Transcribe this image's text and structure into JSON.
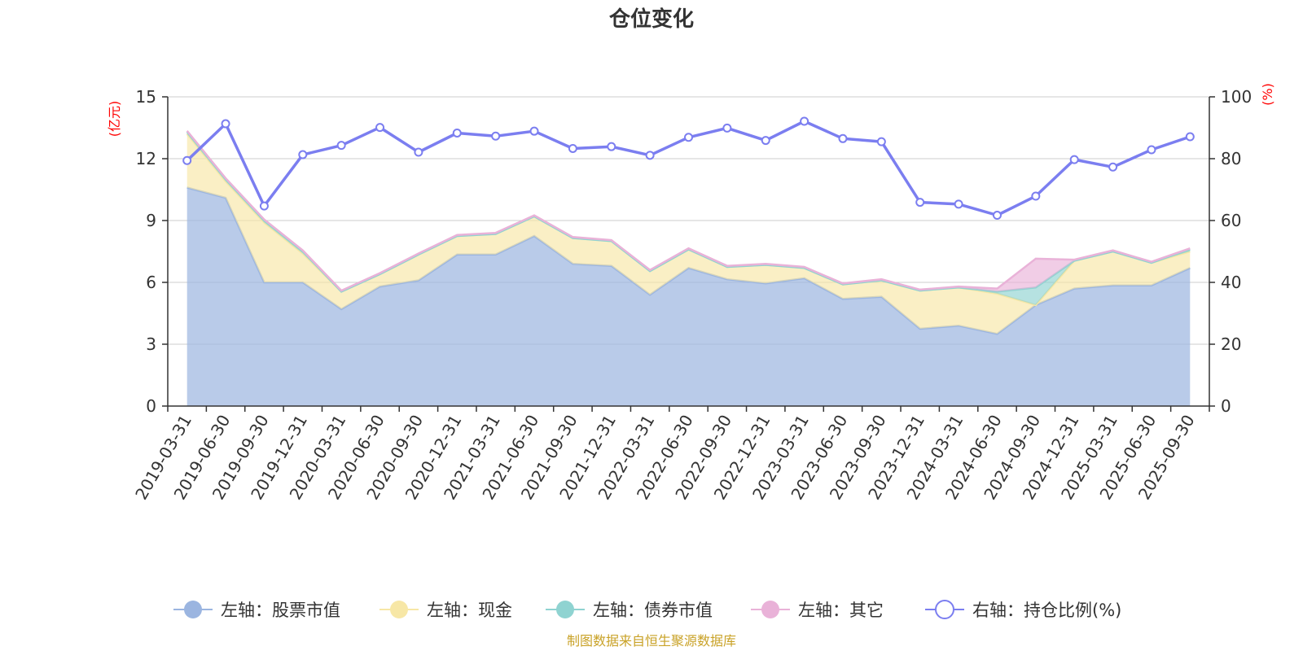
{
  "colors": {
    "stock": "#9bb5e0",
    "cash": "#f7e7a6",
    "bond": "#8fd3d1",
    "other": "#e9b2d8",
    "ratio": "#7b7ef0",
    "grid": "#cccccc",
    "axis": "#333333",
    "unit": "#ff0000",
    "source": "#c9a227"
  },
  "chart_data": {
    "type": "area",
    "title": "仓位变化",
    "left_axis": {
      "unit": "(亿元)",
      "ylim": [
        0,
        15
      ],
      "ticks": [
        "0",
        "3",
        "6",
        "9",
        "12",
        "15"
      ]
    },
    "right_axis": {
      "unit": "(%)",
      "ylim": [
        0,
        100
      ],
      "ticks": [
        "0",
        "20",
        "40",
        "60",
        "80",
        "100"
      ]
    },
    "categories": [
      "2019-03-31",
      "2019-06-30",
      "2019-09-30",
      "2019-12-31",
      "2020-03-31",
      "2020-06-30",
      "2020-09-30",
      "2020-12-31",
      "2021-03-31",
      "2021-06-30",
      "2021-09-30",
      "2021-12-31",
      "2022-03-31",
      "2022-06-30",
      "2022-09-30",
      "2022-12-31",
      "2023-03-31",
      "2023-06-30",
      "2023-09-30",
      "2023-12-31",
      "2024-03-31",
      "2024-06-30",
      "2024-09-30",
      "2024-12-31",
      "2025-03-31",
      "2025-06-30",
      "2025-09-30"
    ],
    "series": [
      {
        "name": "左轴：股票市值",
        "axis": "left",
        "type": "stacked-area",
        "values": [
          10.6,
          10.1,
          6.0,
          6.0,
          4.7,
          5.8,
          6.1,
          7.35,
          7.35,
          8.25,
          6.9,
          6.8,
          5.4,
          6.7,
          6.15,
          5.95,
          6.2,
          5.2,
          5.3,
          3.75,
          3.9,
          3.5,
          4.9,
          5.7,
          5.85,
          5.85,
          6.7
        ]
      },
      {
        "name": "左轴：现金",
        "axis": "left",
        "type": "stacked-area",
        "values": [
          2.6,
          0.8,
          2.9,
          1.4,
          0.85,
          0.6,
          1.25,
          0.9,
          1.0,
          0.95,
          1.25,
          1.2,
          1.15,
          0.9,
          0.6,
          0.9,
          0.5,
          0.7,
          0.8,
          1.85,
          1.85,
          1.95,
          0.0,
          1.35,
          1.65,
          1.1,
          0.8
        ]
      },
      {
        "name": "左轴：债券市值",
        "axis": "left",
        "type": "stacked-area",
        "values": [
          0.1,
          0.1,
          0.1,
          0.1,
          0.0,
          0.0,
          0.0,
          0.0,
          0.0,
          0.0,
          0.0,
          0.0,
          0.0,
          0.0,
          0.0,
          0.0,
          0.0,
          0.0,
          0.0,
          0.0,
          0.0,
          0.1,
          0.85,
          0.0,
          0.0,
          0.0,
          0.1
        ]
      },
      {
        "name": "左轴：其它",
        "axis": "left",
        "type": "stacked-area",
        "values": [
          0.05,
          0.05,
          0.05,
          0.05,
          0.05,
          0.05,
          0.05,
          0.05,
          0.05,
          0.05,
          0.05,
          0.05,
          0.05,
          0.05,
          0.05,
          0.05,
          0.05,
          0.05,
          0.05,
          0.05,
          0.05,
          0.15,
          1.4,
          0.05,
          0.05,
          0.05,
          0.05
        ]
      },
      {
        "name": "右轴：持仓比例(%)",
        "axis": "right",
        "type": "line",
        "values": [
          79.4,
          91.3,
          64.7,
          81.3,
          84.3,
          90.1,
          82.1,
          88.3,
          87.3,
          88.9,
          83.3,
          83.9,
          81.1,
          86.9,
          89.9,
          85.9,
          92.1,
          86.5,
          85.5,
          65.9,
          65.3,
          61.7,
          67.9,
          79.7,
          77.3,
          82.9,
          87.1
        ]
      }
    ],
    "legend_position": "bottom",
    "grid": true
  },
  "source": "制图数据来自恒生聚源数据库"
}
